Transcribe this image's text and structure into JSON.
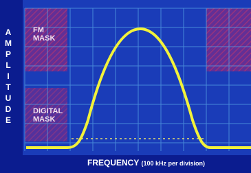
{
  "y_axis_label": "AMPLITUDE",
  "x_axis_label": {
    "main": "FREQUENCY",
    "note": "(100 kHz per division)"
  },
  "mask_labels": [
    {
      "line1": "FM",
      "line2": "MASK"
    },
    {
      "line1": "DIGITAL",
      "line2": "MASK"
    }
  ]
}
